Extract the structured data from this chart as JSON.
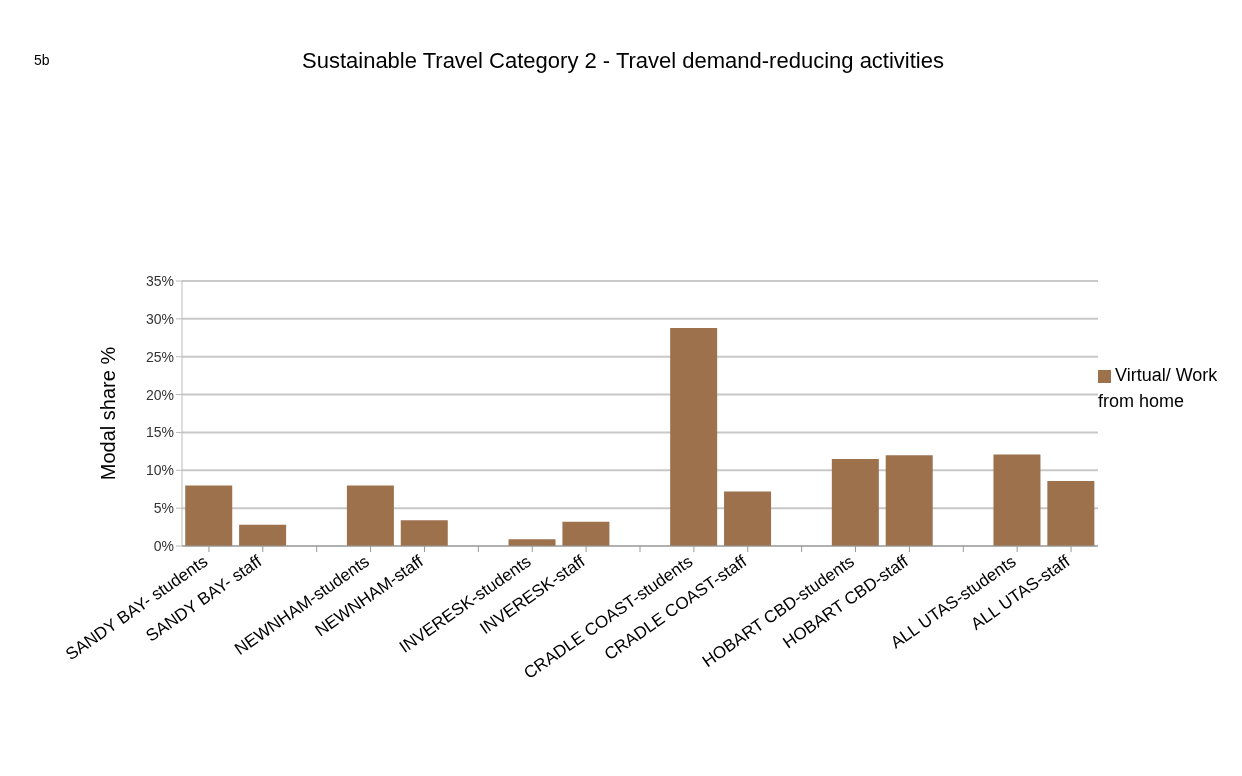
{
  "chart_data": {
    "type": "bar",
    "title": "Sustainable Travel Category 2 - Travel demand-reducing activities",
    "ylabel": "Modal share %",
    "annotations": [
      "5b"
    ],
    "categories": [
      "SANDY BAY- students",
      "SANDY BAY- staff",
      null,
      "NEWNHAM-students",
      "NEWNHAM-staff",
      null,
      "INVERESK-students",
      "INVERESK-staff",
      null,
      "CRADLE COAST-students",
      "CRADLE COAST-staff",
      null,
      "HOBART CBD-students",
      "HOBART CBD-staff",
      null,
      "ALL UTAS-students",
      "ALL UTAS-staff"
    ],
    "series": [
      {
        "name": "Virtual/ Work from home",
        "color": "#9c714c",
        "values": [
          8.0,
          2.8,
          null,
          8.0,
          3.4,
          null,
          0.9,
          3.2,
          null,
          28.8,
          7.2,
          null,
          11.5,
          12.0,
          null,
          12.1,
          8.6
        ]
      }
    ],
    "ylim": [
      0,
      35
    ],
    "yticks": [
      {
        "value": 0,
        "label": "0%"
      },
      {
        "value": 5,
        "label": "5%"
      },
      {
        "value": 10,
        "label": "10%"
      },
      {
        "value": 15,
        "label": "15%"
      },
      {
        "value": 20,
        "label": "20%"
      },
      {
        "value": 25,
        "label": "25%"
      },
      {
        "value": 30,
        "label": "30%"
      },
      {
        "value": 35,
        "label": "35%"
      }
    ],
    "grid": "y",
    "legend": "right"
  }
}
